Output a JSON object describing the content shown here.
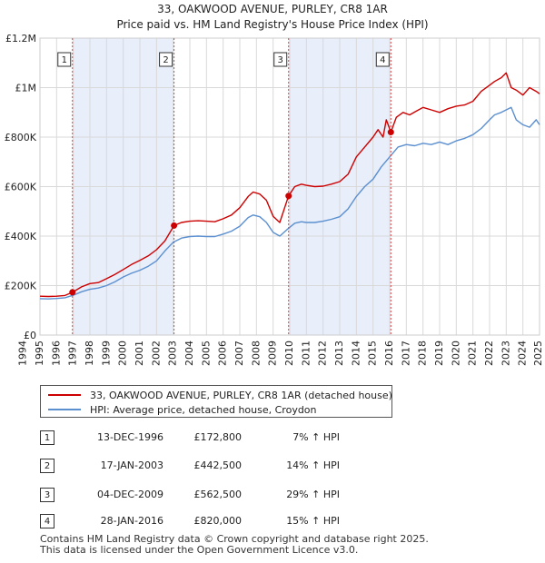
{
  "chart_data": {
    "type": "line",
    "title": "33, OAKWOOD AVENUE, PURLEY, CR8 1AR",
    "subtitle": "Price paid vs. HM Land Registry's House Price Index (HPI)",
    "xlim": [
      1995.0,
      2025.0
    ],
    "ylim": [
      0,
      1200000
    ],
    "x_ticks": [
      "1994",
      "1995",
      "1996",
      "1997",
      "1998",
      "1999",
      "2000",
      "2001",
      "2002",
      "2003",
      "2004",
      "2005",
      "2006",
      "2007",
      "2008",
      "2009",
      "2010",
      "2011",
      "2012",
      "2013",
      "2014",
      "2015",
      "2016",
      "2017",
      "2018",
      "2019",
      "2020",
      "2021",
      "2022",
      "2023",
      "2024",
      "2025"
    ],
    "x_tick_values": [
      1994,
      1995,
      1996,
      1997,
      1998,
      1999,
      2000,
      2001,
      2002,
      2003,
      2004,
      2005,
      2006,
      2007,
      2008,
      2009,
      2010,
      2011,
      2012,
      2013,
      2014,
      2015,
      2016,
      2017,
      2018,
      2019,
      2020,
      2021,
      2022,
      2023,
      2024,
      2025
    ],
    "y_ticks": [
      {
        "value": 0,
        "label": "£0"
      },
      {
        "value": 200000,
        "label": "£200K"
      },
      {
        "value": 400000,
        "label": "£400K"
      },
      {
        "value": 600000,
        "label": "£600K"
      },
      {
        "value": 800000,
        "label": "£800K"
      },
      {
        "value": 1000000,
        "label": "£1M"
      },
      {
        "value": 1200000,
        "label": "£1.2M"
      }
    ],
    "shaded_spans": [
      [
        1996.95,
        2003.05
      ],
      [
        2009.92,
        2016.07
      ]
    ],
    "series": [
      {
        "name": "33, OAKWOOD AVENUE, PURLEY, CR8 1AR (detached house)",
        "color": "#cc0000",
        "x": [
          1995.0,
          1995.5,
          1996.0,
          1996.5,
          1996.95,
          1997.5,
          1998.0,
          1998.5,
          1999.0,
          1999.5,
          2000.0,
          2000.5,
          2001.0,
          2001.5,
          2002.0,
          2002.5,
          2003.05,
          2003.5,
          2004.0,
          2004.5,
          2005.0,
          2005.5,
          2006.0,
          2006.5,
          2007.0,
          2007.5,
          2007.8,
          2008.2,
          2008.6,
          2009.0,
          2009.4,
          2009.93,
          2010.3,
          2010.7,
          2011.0,
          2011.5,
          2012.0,
          2012.5,
          2013.0,
          2013.5,
          2014.0,
          2014.5,
          2015.0,
          2015.3,
          2015.6,
          2015.8,
          2016.07,
          2016.4,
          2016.8,
          2017.2,
          2017.6,
          2018.0,
          2018.5,
          2019.0,
          2019.5,
          2020.0,
          2020.5,
          2021.0,
          2021.5,
          2022.0,
          2022.3,
          2022.7,
          2023.0,
          2023.3,
          2023.6,
          2024.0,
          2024.4,
          2024.8,
          2025.0
        ],
        "values": [
          157000,
          156000,
          157000,
          160000,
          172800,
          195000,
          208000,
          212000,
          228000,
          245000,
          265000,
          285000,
          302000,
          320000,
          345000,
          380000,
          442500,
          455000,
          460000,
          462000,
          460000,
          458000,
          470000,
          485000,
          515000,
          560000,
          578000,
          570000,
          545000,
          480000,
          455000,
          562500,
          600000,
          610000,
          605000,
          600000,
          602000,
          610000,
          620000,
          650000,
          720000,
          760000,
          800000,
          830000,
          800000,
          870000,
          820000,
          880000,
          900000,
          890000,
          905000,
          920000,
          910000,
          900000,
          915000,
          925000,
          930000,
          945000,
          985000,
          1010000,
          1025000,
          1040000,
          1060000,
          1000000,
          990000,
          970000,
          1000000,
          985000,
          975000
        ]
      },
      {
        "name": "HPI: Average price, detached house, Croydon",
        "color": "#5b8fd0",
        "x": [
          1995.0,
          1995.5,
          1996.0,
          1996.5,
          1997.0,
          1997.5,
          1998.0,
          1998.5,
          1999.0,
          1999.5,
          2000.0,
          2000.5,
          2001.0,
          2001.5,
          2002.0,
          2002.5,
          2003.0,
          2003.5,
          2004.0,
          2004.5,
          2005.0,
          2005.5,
          2006.0,
          2006.5,
          2007.0,
          2007.5,
          2007.8,
          2008.2,
          2008.6,
          2009.0,
          2009.4,
          2009.9,
          2010.3,
          2010.7,
          2011.0,
          2011.5,
          2012.0,
          2012.5,
          2013.0,
          2013.5,
          2014.0,
          2014.5,
          2015.0,
          2015.5,
          2016.0,
          2016.5,
          2017.0,
          2017.5,
          2018.0,
          2018.5,
          2019.0,
          2019.5,
          2020.0,
          2020.5,
          2021.0,
          2021.5,
          2022.0,
          2022.3,
          2022.7,
          2023.0,
          2023.3,
          2023.6,
          2024.0,
          2024.4,
          2024.8,
          2025.0
        ],
        "values": [
          147000,
          146000,
          148000,
          151000,
          161000,
          175000,
          185000,
          190000,
          200000,
          215000,
          235000,
          250000,
          262000,
          278000,
          300000,
          340000,
          375000,
          392000,
          398000,
          400000,
          398000,
          398000,
          408000,
          420000,
          440000,
          475000,
          485000,
          478000,
          455000,
          415000,
          400000,
          430000,
          452000,
          458000,
          455000,
          455000,
          460000,
          468000,
          478000,
          510000,
          560000,
          600000,
          630000,
          680000,
          720000,
          760000,
          770000,
          765000,
          775000,
          770000,
          780000,
          770000,
          785000,
          795000,
          810000,
          835000,
          870000,
          890000,
          900000,
          910000,
          920000,
          870000,
          850000,
          840000,
          870000,
          850000
        ]
      }
    ],
    "sale_markers": [
      {
        "label": "1",
        "x": 1996.95,
        "y": 172800
      },
      {
        "label": "2",
        "x": 2003.05,
        "y": 442500
      },
      {
        "label": "3",
        "x": 2009.93,
        "y": 562500
      },
      {
        "label": "4",
        "x": 2016.07,
        "y": 820000
      }
    ]
  },
  "legend": {
    "items": [
      {
        "label": "33, OAKWOOD AVENUE, PURLEY, CR8 1AR (detached house)",
        "color": "#cc0000"
      },
      {
        "label": "HPI: Average price, detached house, Croydon",
        "color": "#5b8fd0"
      }
    ]
  },
  "sales": [
    {
      "num": "1",
      "date": "13-DEC-1996",
      "price": "£172,800",
      "hpi": "7% ↑ HPI"
    },
    {
      "num": "2",
      "date": "17-JAN-2003",
      "price": "£442,500",
      "hpi": "14% ↑ HPI"
    },
    {
      "num": "3",
      "date": "04-DEC-2009",
      "price": "£562,500",
      "hpi": "29% ↑ HPI"
    },
    {
      "num": "4",
      "date": "28-JAN-2016",
      "price": "£820,000",
      "hpi": "15% ↑ HPI"
    }
  ],
  "footer": {
    "line1": "Contains HM Land Registry data © Crown copyright and database right 2025.",
    "line2": "This data is licensed under the Open Government Licence v3.0."
  }
}
